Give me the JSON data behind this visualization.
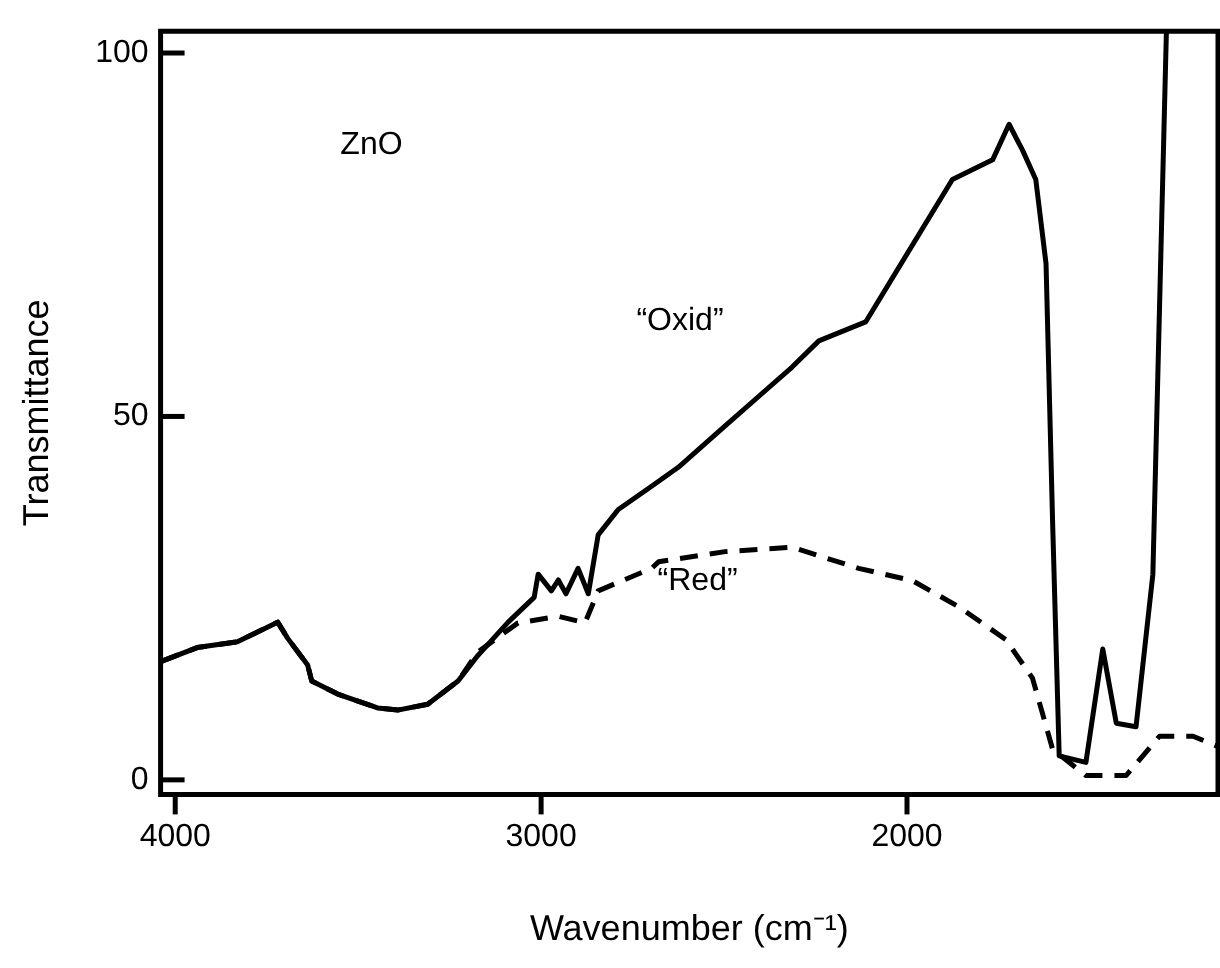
{
  "chart_data": {
    "type": "line",
    "xlabel": "Wavenumber (cm⁻¹)",
    "ylabel": "Transmittance",
    "annotations": [
      "ZnO"
    ],
    "xlim": [
      4040,
      1150
    ],
    "ylim": [
      -2,
      103
    ],
    "xticks": [
      4000,
      3000,
      2000
    ],
    "yticks": [
      0,
      50,
      100
    ],
    "grid": false,
    "legend": false,
    "marker": "none",
    "series": [
      {
        "name": "“Oxid”",
        "color": "#000000",
        "line_style": "solid",
        "x": [
          4038,
          3940,
          3830,
          3720,
          3693,
          3638,
          3627,
          3556,
          3447,
          3392,
          3310,
          3227,
          3173,
          3090,
          3019,
          3008,
          2972,
          2953,
          2932,
          2899,
          2871,
          2844,
          2789,
          2698,
          2625,
          2497,
          2314,
          2241,
          2113,
          1876,
          1766,
          1721,
          1684,
          1648,
          1620,
          1602,
          1584,
          1511,
          1465,
          1428,
          1374,
          1328,
          1291
        ],
        "values": [
          16.3,
          18.2,
          19,
          21.7,
          19.5,
          15.8,
          13.6,
          11.8,
          9.9,
          9.6,
          10.4,
          13.6,
          17.1,
          21.7,
          25.1,
          28.3,
          26,
          27.5,
          25.6,
          29.1,
          25.6,
          33.7,
          37.2,
          40.4,
          43,
          48.7,
          56.8,
          60.4,
          63,
          82.6,
          85.3,
          90.2,
          86.6,
          82.6,
          71,
          35.4,
          3.3,
          2.4,
          18,
          7.8,
          7.3,
          28.3,
          103
        ]
      },
      {
        "name": "“Red”",
        "color": "#000000",
        "line_style": "dashed",
        "x": [
          4038,
          3940,
          3830,
          3720,
          3693,
          3638,
          3627,
          3556,
          3447,
          3392,
          3310,
          3227,
          3173,
          3063,
          2953,
          2880,
          2844,
          2698,
          2679,
          2497,
          2314,
          2132,
          1985,
          1858,
          1730,
          1657,
          1602,
          1511,
          1401,
          1310,
          1218,
          1151
        ],
        "values": [
          16.3,
          18.2,
          19,
          21.7,
          19.5,
          15.8,
          13.6,
          11.8,
          9.9,
          9.6,
          10.4,
          13.6,
          17.6,
          21.6,
          22.5,
          21.6,
          26,
          29.1,
          30,
          31.4,
          32,
          29.1,
          27.4,
          23.8,
          19.3,
          14,
          4.2,
          0.6,
          0.6,
          6,
          6,
          4.6
        ]
      }
    ]
  }
}
